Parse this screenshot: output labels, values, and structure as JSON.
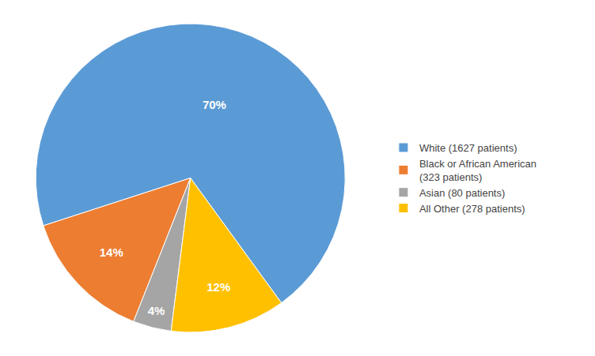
{
  "chart_data": {
    "type": "pie",
    "categories": [
      "White (1627 patients)",
      "Black or African American\n(323 patients)",
      "Asian (80 patients)",
      "All Other (278 patients)"
    ],
    "values": [
      70,
      14,
      4,
      12
    ],
    "value_labels": [
      "70%",
      "14%",
      "4%",
      "12%"
    ],
    "data_labels": true,
    "colors": [
      "#5B9BD5",
      "#ED7D31",
      "#A5A5A5",
      "#FFC000"
    ],
    "legend": "right"
  }
}
